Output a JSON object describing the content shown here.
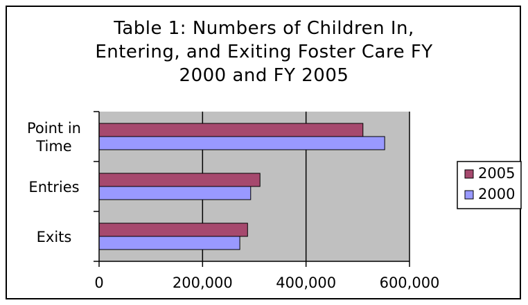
{
  "chart_data": {
    "type": "bar",
    "orientation": "horizontal",
    "title_lines": [
      "Table 1: Numbers of Children In,",
      "Entering, and Exiting Foster Care FY",
      "2000 and FY 2005"
    ],
    "categories": [
      "Point in Time",
      "Entries",
      "Exits"
    ],
    "category_label_lines": [
      [
        "Point in",
        "Time"
      ],
      [
        "Entries"
      ],
      [
        "Exits"
      ]
    ],
    "series": [
      {
        "name": "2005",
        "values": [
          510000,
          311000,
          287000
        ],
        "color": "#a6496e"
      },
      {
        "name": "2000",
        "values": [
          552000,
          293000,
          272000
        ],
        "color": "#9999ff"
      }
    ],
    "x_ticks": [
      0,
      200000,
      400000,
      600000
    ],
    "x_tick_labels": [
      "0",
      "200,000",
      "400,000",
      "600,000"
    ],
    "xlim": [
      0,
      600000
    ],
    "xlabel": "",
    "ylabel": "",
    "grid": "vertical",
    "plot_background": "#c0c0c0",
    "legend_position": "right"
  }
}
